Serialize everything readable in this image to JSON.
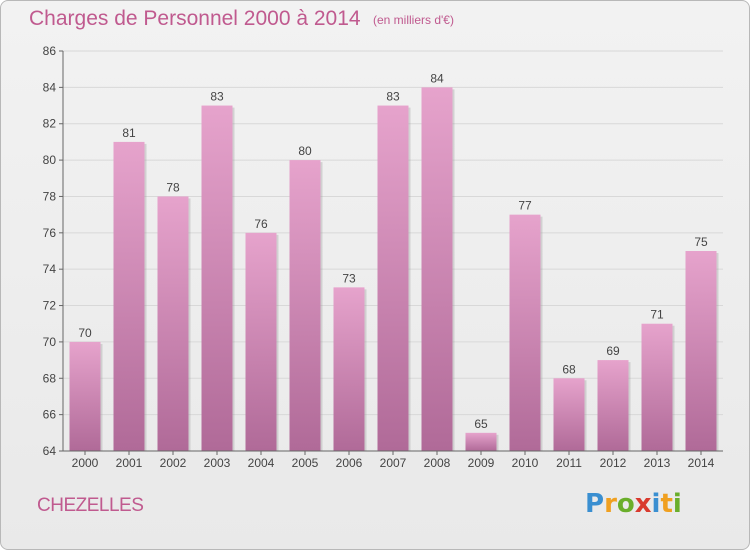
{
  "title": "Charges de Personnel 2000 à 2014",
  "subtitle": "(en milliers d'€)",
  "commune": "CHEZELLES",
  "logo": {
    "letters": [
      "P",
      "r",
      "o",
      "x",
      "i",
      "t",
      "i"
    ],
    "colors": [
      "#3a8fd1",
      "#f0a020",
      "#6aae2a",
      "#d93a2e",
      "#3a8fd1",
      "#f0a020",
      "#6aae2a"
    ]
  },
  "colors": {
    "bar_top": "#e6a3cc",
    "bar_bottom": "#b06a98",
    "text_accent": "#c05a8f"
  },
  "chart_data": {
    "type": "bar",
    "title": "Charges de Personnel 2000 à 2014",
    "subtitle": "(en milliers d'€)",
    "categories": [
      "2000",
      "2001",
      "2002",
      "2003",
      "2004",
      "2005",
      "2006",
      "2007",
      "2008",
      "2009",
      "2010",
      "2011",
      "2012",
      "2013",
      "2014"
    ],
    "values": [
      70,
      81,
      78,
      83,
      76,
      80,
      73,
      83,
      84,
      65,
      77,
      68,
      69,
      71,
      75
    ],
    "ylim": [
      64,
      86
    ],
    "yticks": [
      64,
      66,
      68,
      70,
      72,
      74,
      76,
      78,
      80,
      82,
      84,
      86
    ],
    "grid": true,
    "legend": "none"
  }
}
